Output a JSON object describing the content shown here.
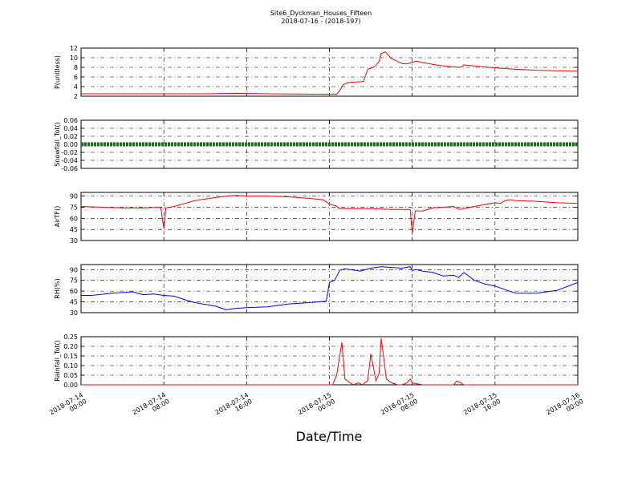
{
  "header": {
    "title": "Site6_Dyckman_Houses_Fifteen",
    "subtitle": "2018-07-16 - (2018-197)"
  },
  "xlabel": "Date/Time",
  "x_ticks": [
    {
      "value": 0,
      "line1": "2018-07-14",
      "line2": "00:00"
    },
    {
      "value": 8,
      "line1": "2018-07-14",
      "line2": "08:00"
    },
    {
      "value": 16,
      "line1": "2018-07-14",
      "line2": "16:00"
    },
    {
      "value": 24,
      "line1": "2018-07-15",
      "line2": "00:00"
    },
    {
      "value": 32,
      "line1": "2018-07-15",
      "line2": "08:00"
    },
    {
      "value": 40,
      "line1": "2018-07-15",
      "line2": "16:00"
    },
    {
      "value": 48,
      "line1": "2018-07-16",
      "line2": "00:00"
    }
  ],
  "chart_data": [
    {
      "type": "line",
      "ylabel": "P(unitless)",
      "ylim": [
        2,
        12
      ],
      "yticks": [
        2,
        4,
        6,
        8,
        10,
        12
      ],
      "xlim": [
        "2018-07-14 00:00",
        "2018-07-16 00:00"
      ],
      "grid": true,
      "series": [
        {
          "color": "#ff0000",
          "x": [
            "2018-07-14 00:00",
            "2018-07-14 06:00",
            "2018-07-14 12:00",
            "2018-07-14 15:00",
            "2018-07-14 18:00",
            "2018-07-15 00:00",
            "2018-07-15 00:42",
            "2018-07-15 01:00",
            "2018-07-15 01:18",
            "2018-07-15 01:30",
            "2018-07-15 02:00",
            "2018-07-15 03:00",
            "2018-07-15 03:18",
            "2018-07-15 03:42",
            "2018-07-15 04:00",
            "2018-07-15 04:24",
            "2018-07-15 04:48",
            "2018-07-15 05:00",
            "2018-07-15 05:24",
            "2018-07-15 06:00",
            "2018-07-15 06:36",
            "2018-07-15 07:00",
            "2018-07-15 07:24",
            "2018-07-15 07:48",
            "2018-07-15 08:24",
            "2018-07-15 09:00",
            "2018-07-15 10:00",
            "2018-07-15 11:00",
            "2018-07-15 12:00",
            "2018-07-15 12:24",
            "2018-07-15 12:48",
            "2018-07-15 13:00",
            "2018-07-15 14:00",
            "2018-07-15 16:00",
            "2018-07-15 18:00",
            "2018-07-15 20:00",
            "2018-07-15 22:00",
            "2018-07-16 00:00"
          ],
          "y": [
            2.5,
            2.5,
            2.5,
            2.6,
            2.5,
            2.4,
            2.4,
            3.2,
            4.3,
            4.6,
            4.9,
            5.0,
            5.1,
            7.6,
            7.8,
            8.2,
            9.2,
            10.9,
            11.2,
            9.8,
            9.2,
            8.8,
            8.7,
            8.9,
            9.3,
            9.0,
            8.6,
            8.3,
            8.1,
            8.0,
            8.1,
            8.5,
            8.3,
            7.9,
            7.6,
            7.4,
            7.3,
            7.2
          ]
        }
      ]
    },
    {
      "type": "line",
      "ylabel": "Snowfall_Tot()",
      "ylim": [
        -0.06,
        0.06
      ],
      "yticks": [
        -0.06,
        -0.04,
        -0.02,
        0.0,
        0.02,
        0.04,
        0.06
      ],
      "xlim": [
        "2018-07-14 00:00",
        "2018-07-16 00:00"
      ],
      "grid": true,
      "series": [
        {
          "color": "#008000",
          "marker": "dot",
          "x": [
            "2018-07-14 00:00",
            "2018-07-16 00:00"
          ],
          "y": [
            0.0,
            0.0
          ]
        }
      ]
    },
    {
      "type": "line",
      "ylabel": "AirTF()",
      "ylim": [
        30,
        95
      ],
      "yticks": [
        30,
        45,
        60,
        75,
        90
      ],
      "xlim": [
        "2018-07-14 00:00",
        "2018-07-16 00:00"
      ],
      "grid": true,
      "series": [
        {
          "color": "#ff0000",
          "x": [
            "2018-07-14 00:00",
            "2018-07-14 02:00",
            "2018-07-14 04:00",
            "2018-07-14 06:00",
            "2018-07-14 07:42",
            "2018-07-14 08:00",
            "2018-07-14 08:12",
            "2018-07-14 09:00",
            "2018-07-14 10:00",
            "2018-07-14 11:00",
            "2018-07-14 12:00",
            "2018-07-14 13:00",
            "2018-07-14 14:00",
            "2018-07-14 15:00",
            "2018-07-14 16:00",
            "2018-07-14 18:00",
            "2018-07-14 20:00",
            "2018-07-14 22:00",
            "2018-07-14 23:24",
            "2018-07-15 00:00",
            "2018-07-15 00:36",
            "2018-07-15 01:00",
            "2018-07-15 02:00",
            "2018-07-15 04:00",
            "2018-07-15 06:00",
            "2018-07-15 07:48",
            "2018-07-15 08:00",
            "2018-07-15 08:18",
            "2018-07-15 09:00",
            "2018-07-15 10:00",
            "2018-07-15 11:00",
            "2018-07-15 12:00",
            "2018-07-15 12:30",
            "2018-07-15 13:00",
            "2018-07-15 14:00",
            "2018-07-15 16:00",
            "2018-07-15 16:30",
            "2018-07-15 17:00",
            "2018-07-15 17:30",
            "2018-07-15 18:00",
            "2018-07-15 20:00",
            "2018-07-15 22:00",
            "2018-07-16 00:00"
          ],
          "y": [
            76,
            75,
            74,
            74,
            75,
            46,
            74,
            76,
            80,
            84,
            86,
            88,
            90,
            91,
            90,
            90,
            89,
            87,
            85,
            79,
            77,
            73,
            73,
            73,
            72,
            72,
            40,
            70,
            70,
            74,
            75,
            76,
            72,
            73,
            76,
            81,
            80,
            84,
            85,
            84,
            83,
            81,
            80
          ]
        }
      ]
    },
    {
      "type": "line",
      "ylabel": "RH(%)",
      "ylim": [
        30,
        97
      ],
      "yticks": [
        30,
        45,
        60,
        75,
        90
      ],
      "xlim": [
        "2018-07-14 00:00",
        "2018-07-16 00:00"
      ],
      "grid": true,
      "series": [
        {
          "color": "#0000ff",
          "x": [
            "2018-07-14 00:00",
            "2018-07-14 01:00",
            "2018-07-14 03:00",
            "2018-07-14 05:00",
            "2018-07-14 06:00",
            "2018-07-14 07:00",
            "2018-07-14 08:00",
            "2018-07-14 09:00",
            "2018-07-14 10:00",
            "2018-07-14 11:00",
            "2018-07-14 13:00",
            "2018-07-14 14:00",
            "2018-07-14 15:00",
            "2018-07-14 16:00",
            "2018-07-14 18:00",
            "2018-07-14 20:00",
            "2018-07-14 22:00",
            "2018-07-14 23:42",
            "2018-07-15 00:00",
            "2018-07-15 00:30",
            "2018-07-15 01:00",
            "2018-07-15 01:30",
            "2018-07-15 03:00",
            "2018-07-15 04:00",
            "2018-07-15 05:00",
            "2018-07-15 06:00",
            "2018-07-15 07:00",
            "2018-07-15 07:48",
            "2018-07-15 08:00",
            "2018-07-15 08:24",
            "2018-07-15 09:00",
            "2018-07-15 10:00",
            "2018-07-15 11:00",
            "2018-07-15 12:00",
            "2018-07-15 12:30",
            "2018-07-15 13:00",
            "2018-07-15 14:00",
            "2018-07-15 15:00",
            "2018-07-15 16:00",
            "2018-07-15 17:00",
            "2018-07-15 18:00",
            "2018-07-15 20:00",
            "2018-07-15 22:00",
            "2018-07-16 00:00"
          ],
          "y": [
            54,
            54,
            57,
            59,
            55,
            56,
            54,
            53,
            48,
            44,
            39,
            34,
            36,
            37,
            38,
            42,
            44,
            46,
            72,
            75,
            89,
            91,
            88,
            92,
            94,
            93,
            92,
            94,
            89,
            90,
            88,
            86,
            81,
            82,
            79,
            86,
            75,
            70,
            67,
            62,
            57,
            57,
            61,
            72
          ]
        }
      ]
    },
    {
      "type": "line",
      "ylabel": "Rainfall_Tot()",
      "ylim": [
        0,
        0.25
      ],
      "yticks": [
        0.0,
        0.05,
        0.1,
        0.15,
        0.2,
        0.25
      ],
      "xlim": [
        "2018-07-14 00:00",
        "2018-07-16 00:00"
      ],
      "grid": true,
      "series": [
        {
          "color": "#ff0000",
          "x": [
            "2018-07-14 00:00",
            "2018-07-15 00:00",
            "2018-07-15 00:18",
            "2018-07-15 00:42",
            "2018-07-15 01:12",
            "2018-07-15 01:30",
            "2018-07-15 02:00",
            "2018-07-15 02:18",
            "2018-07-15 02:48",
            "2018-07-15 03:12",
            "2018-07-15 03:24",
            "2018-07-15 03:42",
            "2018-07-15 04:00",
            "2018-07-15 04:30",
            "2018-07-15 04:48",
            "2018-07-15 05:00",
            "2018-07-15 05:12",
            "2018-07-15 05:30",
            "2018-07-15 06:00",
            "2018-07-15 06:36",
            "2018-07-15 07:00",
            "2018-07-15 07:30",
            "2018-07-15 07:48",
            "2018-07-15 08:00",
            "2018-07-15 09:00",
            "2018-07-15 12:00",
            "2018-07-15 12:18",
            "2018-07-15 12:42",
            "2018-07-15 13:00",
            "2018-07-16 00:00"
          ],
          "y": [
            0,
            0,
            0,
            0.05,
            0.22,
            0.03,
            0.01,
            0,
            0.01,
            0,
            0.01,
            0.02,
            0.16,
            0.02,
            0.06,
            0.24,
            0.16,
            0.03,
            0.01,
            0,
            0,
            0.01,
            0.03,
            0.01,
            0,
            0,
            0.02,
            0.01,
            0,
            0
          ]
        }
      ]
    }
  ]
}
